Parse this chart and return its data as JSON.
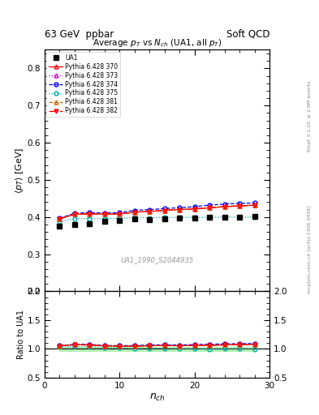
{
  "title": "Average $p_T$ vs $N_{ch}$ (UA1, all $p_T$)",
  "xlabel": "$n_{ch}$",
  "ylabel_main": "$\\langle p_T \\rangle$ [GeV]",
  "ylabel_ratio": "Ratio to UA1",
  "header_left": "63 GeV  ppbar",
  "header_right": "Soft QCD",
  "watermark": "UA1_1990_S2044935",
  "right_label_top": "Rivet 3.1.10, ≥ 2.8M events",
  "right_label_bottom": "mcplots.cern.ch [arXiv:1306.3436]",
  "xlim": [
    0,
    30
  ],
  "ylim_main": [
    0.2,
    0.85
  ],
  "ylim_ratio": [
    0.5,
    2.0
  ],
  "ua1_x": [
    2,
    4,
    6,
    8,
    10,
    12,
    14,
    16,
    18,
    20,
    22,
    24,
    26,
    28
  ],
  "ua1_y": [
    0.375,
    0.38,
    0.382,
    0.388,
    0.39,
    0.395,
    0.393,
    0.395,
    0.398,
    0.398,
    0.4,
    0.4,
    0.4,
    0.401
  ],
  "series": [
    {
      "label": "Pythia 6.428 370",
      "color": "#ff0000",
      "linestyle": "-",
      "marker": "^",
      "markerfacecolor": "none",
      "x": [
        2,
        4,
        6,
        8,
        10,
        12,
        14,
        16,
        18,
        20,
        22,
        24,
        26,
        28
      ],
      "y": [
        0.395,
        0.408,
        0.408,
        0.408,
        0.408,
        0.413,
        0.415,
        0.418,
        0.42,
        0.422,
        0.425,
        0.428,
        0.43,
        0.432
      ]
    },
    {
      "label": "Pythia 6.428 373",
      "color": "#cc00cc",
      "linestyle": ":",
      "marker": "^",
      "markerfacecolor": "none",
      "x": [
        2,
        4,
        6,
        8,
        10,
        12,
        14,
        16,
        18,
        20,
        22,
        24,
        26,
        28
      ],
      "y": [
        0.395,
        0.408,
        0.408,
        0.408,
        0.409,
        0.413,
        0.415,
        0.418,
        0.42,
        0.422,
        0.425,
        0.428,
        0.43,
        0.432
      ]
    },
    {
      "label": "Pythia 6.428 374",
      "color": "#0000ff",
      "linestyle": "--",
      "marker": "o",
      "markerfacecolor": "none",
      "x": [
        2,
        4,
        6,
        8,
        10,
        12,
        14,
        16,
        18,
        20,
        22,
        24,
        26,
        28
      ],
      "y": [
        0.397,
        0.41,
        0.412,
        0.411,
        0.412,
        0.418,
        0.42,
        0.423,
        0.425,
        0.428,
        0.432,
        0.435,
        0.437,
        0.438
      ]
    },
    {
      "label": "Pythia 6.428 375",
      "color": "#00aaaa",
      "linestyle": ":",
      "marker": "o",
      "markerfacecolor": "none",
      "x": [
        2,
        4,
        6,
        8,
        10,
        12,
        14,
        16,
        18,
        20,
        22,
        24,
        26,
        28
      ],
      "y": [
        0.388,
        0.396,
        0.396,
        0.396,
        0.397,
        0.398,
        0.398,
        0.399,
        0.399,
        0.399,
        0.399,
        0.4,
        0.4,
        0.4
      ]
    },
    {
      "label": "Pythia 6.428 381",
      "color": "#cc6600",
      "linestyle": "--",
      "marker": "^",
      "markerfacecolor": "none",
      "x": [
        2,
        4,
        6,
        8,
        10,
        12,
        14,
        16,
        18,
        20,
        22,
        24,
        26,
        28
      ],
      "y": [
        0.395,
        0.408,
        0.408,
        0.408,
        0.408,
        0.413,
        0.415,
        0.418,
        0.42,
        0.422,
        0.425,
        0.428,
        0.43,
        0.432
      ]
    },
    {
      "label": "Pythia 6.428 382",
      "color": "#ff0000",
      "linestyle": "-.",
      "marker": "v",
      "markerfacecolor": "#ff4444",
      "x": [
        2,
        4,
        6,
        8,
        10,
        12,
        14,
        16,
        18,
        20,
        22,
        24,
        26,
        28
      ],
      "y": [
        0.395,
        0.408,
        0.408,
        0.408,
        0.408,
        0.413,
        0.415,
        0.418,
        0.42,
        0.422,
        0.425,
        0.428,
        0.43,
        0.432
      ]
    }
  ],
  "ratio_band_color": "#90ee90",
  "ratio_band_alpha": 0.6,
  "yticks_main": [
    0.2,
    0.3,
    0.4,
    0.5,
    0.6,
    0.7,
    0.8
  ],
  "yticks_ratio": [
    0.5,
    1.0,
    1.5,
    2.0
  ],
  "xticks": [
    0,
    10,
    20,
    30
  ]
}
